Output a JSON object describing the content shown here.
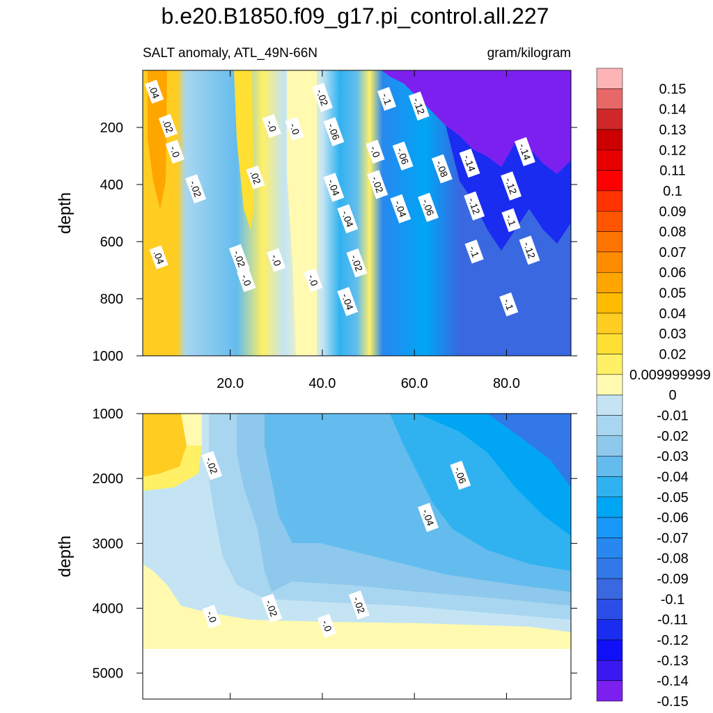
{
  "chart_data": {
    "type": "heatmap",
    "title": "b.e20.B1850.f09_g17.pi_control.all.227",
    "subtitle_left": "SALT anomaly, ATL_49N-66N",
    "subtitle_right": "gram/kilogram",
    "ylabel": "depth",
    "xlim": [
      1,
      94
    ],
    "x_ticks": [
      "20.0",
      "40.0",
      "60.0",
      "80.0"
    ],
    "x_tick_values": [
      20,
      40,
      60,
      80
    ],
    "panels": [
      {
        "name": "upper",
        "ylim": [
          0,
          1000
        ],
        "y_ticks": [
          "200",
          "400",
          "600",
          "800",
          "1000"
        ],
        "y_tick_values": [
          200,
          400,
          600,
          800,
          1000
        ]
      },
      {
        "name": "lower",
        "ylim": [
          1000,
          5400
        ],
        "y_ticks": [
          "1000",
          "2000",
          "3000",
          "4000",
          "5000"
        ],
        "y_tick_values": [
          1000,
          2000,
          3000,
          4000,
          5000
        ]
      }
    ],
    "colorbar": {
      "labels": [
        "0.15",
        "0.14",
        "0.13",
        "0.12",
        "0.11",
        "0.1",
        "0.09",
        "0.08",
        "0.07",
        "0.06",
        "0.05",
        "0.04",
        "0.03",
        "0.02",
        "0.009999999",
        "0",
        "-0.01",
        "-0.02",
        "-0.03",
        "-0.04",
        "-0.05",
        "-0.06",
        "-0.07",
        "-0.08",
        "-0.09",
        "-0.1",
        "-0.11",
        "-0.12",
        "-0.13",
        "-0.14",
        "-0.15"
      ],
      "colors": [
        "#fcb4b4",
        "#e86868",
        "#d02828",
        "#cc0000",
        "#e80000",
        "#ff0000",
        "#ff3300",
        "#ff5500",
        "#ff7300",
        "#ff8c00",
        "#ffa500",
        "#ffbb00",
        "#ffcc22",
        "#ffe033",
        "#fff066",
        "#fffab0",
        "#c4e4f4",
        "#a8d6f0",
        "#8ec8ec",
        "#64bcee",
        "#30b2f0",
        "#00a6f4",
        "#1898f8",
        "#2888f0",
        "#3278e8",
        "#3a68e0",
        "#2c4ee8",
        "#1a2cf0",
        "#1010f8",
        "#3a18f0",
        "#7c20f0"
      ]
    },
    "contour_labels": {
      "upper": [
        {
          "x": 3.5,
          "y": 75,
          "t": ".04"
        },
        {
          "x": 6.5,
          "y": 195,
          "t": ".02"
        },
        {
          "x": 8,
          "y": 285,
          "t": "-.0"
        },
        {
          "x": 12.5,
          "y": 415,
          "t": "-.02"
        },
        {
          "x": 4.5,
          "y": 655,
          "t": ".04"
        },
        {
          "x": 22,
          "y": 660,
          "t": "-.02"
        },
        {
          "x": 23.5,
          "y": 735,
          "t": "-.0"
        },
        {
          "x": 25.5,
          "y": 375,
          "t": ".02"
        },
        {
          "x": 29,
          "y": 195,
          "t": "-.0"
        },
        {
          "x": 30,
          "y": 665,
          "t": "-.0"
        },
        {
          "x": 34,
          "y": 205,
          "t": "-.0"
        },
        {
          "x": 38,
          "y": 735,
          "t": "-.0"
        },
        {
          "x": 40,
          "y": 95,
          "t": "-.02"
        },
        {
          "x": 42.5,
          "y": 215,
          "t": "-.06"
        },
        {
          "x": 42.5,
          "y": 410,
          "t": "-.04"
        },
        {
          "x": 45.5,
          "y": 520,
          "t": "-.04"
        },
        {
          "x": 47.5,
          "y": 675,
          "t": "-.02"
        },
        {
          "x": 45.5,
          "y": 810,
          "t": "-.04"
        },
        {
          "x": 51.5,
          "y": 285,
          "t": "-.0"
        },
        {
          "x": 52,
          "y": 400,
          "t": "-.02"
        },
        {
          "x": 54,
          "y": 100,
          "t": "-.1"
        },
        {
          "x": 57,
          "y": 485,
          "t": "-.04"
        },
        {
          "x": 57.5,
          "y": 300,
          "t": "-.06"
        },
        {
          "x": 61,
          "y": 125,
          "t": "-.12"
        },
        {
          "x": 63,
          "y": 480,
          "t": "-.06"
        },
        {
          "x": 66,
          "y": 345,
          "t": "-.08"
        },
        {
          "x": 72,
          "y": 325,
          "t": "-.14"
        },
        {
          "x": 73,
          "y": 475,
          "t": "-.12"
        },
        {
          "x": 73,
          "y": 635,
          "t": "-.1"
        },
        {
          "x": 81,
          "y": 405,
          "t": "-.12"
        },
        {
          "x": 81,
          "y": 525,
          "t": "-.1"
        },
        {
          "x": 84,
          "y": 285,
          "t": "-.14"
        },
        {
          "x": 85,
          "y": 630,
          "t": "-.12"
        },
        {
          "x": 80.5,
          "y": 820,
          "t": "-.1"
        }
      ],
      "lower": [
        {
          "x": 16,
          "y": 1800,
          "t": "-.02"
        },
        {
          "x": 70,
          "y": 1950,
          "t": "-.06"
        },
        {
          "x": 63,
          "y": 2600,
          "t": "-.04"
        },
        {
          "x": 29,
          "y": 4000,
          "t": "-.02"
        },
        {
          "x": 48,
          "y": 3950,
          "t": "-.02"
        },
        {
          "x": 16,
          "y": 4130,
          "t": "-.0"
        },
        {
          "x": 41,
          "y": 4270,
          "t": "-.0"
        }
      ]
    }
  }
}
